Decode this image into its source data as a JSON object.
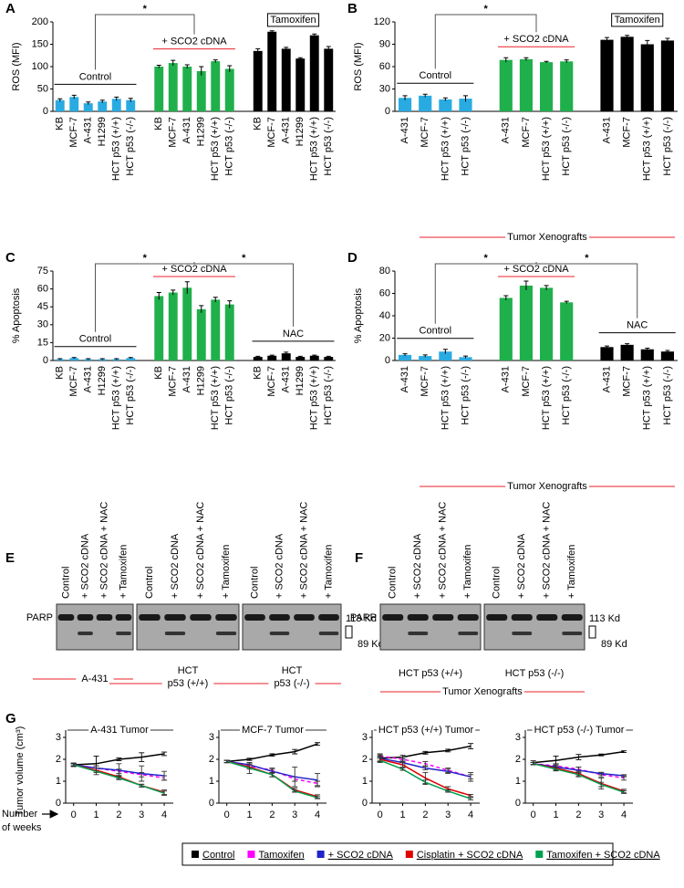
{
  "chart_data": [
    {
      "type": "bar",
      "label": "A",
      "ylabel": "ROS (MFI)",
      "ylim": [
        0,
        200
      ],
      "yticks": [
        0,
        50,
        100,
        150,
        200
      ],
      "groups": [
        {
          "name": "Control",
          "color": "#29abe2",
          "label_color": "#000000",
          "categories": [
            "KB",
            "MCF-7",
            "A-431",
            "H1299",
            "HCT p53 (+/+)",
            "HCT p53 (-/-)"
          ],
          "values": [
            25,
            32,
            18,
            22,
            28,
            25
          ],
          "errors": [
            3,
            4,
            3,
            3,
            4,
            4
          ]
        },
        {
          "name": "+ SCO2 cDNA",
          "color": "#1fb04b",
          "label_color": "#e8202a",
          "categories": [
            "KB",
            "MCF-7",
            "A-431",
            "H1299",
            "HCT p53 (+/+)",
            "HCT p53 (-/-)"
          ],
          "values": [
            100,
            108,
            100,
            90,
            112,
            95
          ],
          "errors": [
            3,
            6,
            4,
            10,
            3,
            7
          ]
        },
        {
          "name": "Tamoxifen",
          "color": "#000000",
          "label_color": "#000000",
          "boxed": true,
          "categories": [
            "KB",
            "MCF-7",
            "A-431",
            "H1299",
            "HCT p53 (+/+)",
            "HCT p53 (-/-)"
          ],
          "values": [
            135,
            178,
            140,
            118,
            170,
            140
          ],
          "errors": [
            5,
            2,
            3,
            2,
            3,
            5
          ]
        }
      ],
      "brackets": [
        {
          "groups": [
            0,
            1
          ],
          "text": "*",
          "color": "#e8202a"
        }
      ]
    },
    {
      "type": "bar",
      "label": "B",
      "ylabel": "ROS (MFI)",
      "ylim": [
        0,
        120
      ],
      "yticks": [
        0,
        30,
        60,
        90,
        120
      ],
      "groups": [
        {
          "name": "Control",
          "color": "#29abe2",
          "label_color": "#000000",
          "categories": [
            "A-431",
            "MCF-7",
            "HCT p53 (+/+)",
            "HCT p53 (-/-)"
          ],
          "values": [
            18,
            21,
            16,
            17
          ],
          "errors": [
            3,
            2,
            2,
            4
          ]
        },
        {
          "name": "+ SCO2 cDNA",
          "color": "#1fb04b",
          "label_color": "#e8202a",
          "categories": [
            "A-431",
            "MCF-7",
            "HCT p53 (+/+)",
            "HCT p53 (-/-)"
          ],
          "values": [
            69,
            70,
            66,
            67
          ],
          "errors": [
            3,
            2,
            1,
            2
          ]
        },
        {
          "name": "Tamoxifen",
          "color": "#000000",
          "label_color": "#000000",
          "boxed": true,
          "categories": [
            "A-431",
            "MCF-7",
            "HCT p53 (+/+)",
            "HCT p53 (-/-)"
          ],
          "values": [
            96,
            100,
            90,
            95
          ],
          "errors": [
            3,
            2,
            5,
            3
          ]
        }
      ],
      "brackets": [
        {
          "groups": [
            0,
            1
          ],
          "text": "*",
          "color": "#e8202a"
        }
      ],
      "note": "Tumor Xenografts",
      "note_color": "#e8202a"
    },
    {
      "type": "bar",
      "label": "C",
      "ylabel": "% Apoptosis",
      "ylim": [
        0,
        75
      ],
      "yticks": [
        0,
        15,
        30,
        45,
        60,
        75
      ],
      "groups": [
        {
          "name": "Control",
          "color": "#29abe2",
          "label_color": "#000000",
          "categories": [
            "KB",
            "MCF-7",
            "A-431",
            "H1299",
            "HCT p53 (+/+)",
            "HCT p53 (-/-)"
          ],
          "values": [
            1,
            2,
            1,
            1,
            1,
            2
          ],
          "errors": [
            0.5,
            0.5,
            0.5,
            0.5,
            0.5,
            0.5
          ]
        },
        {
          "name": "+ SCO2 cDNA",
          "color": "#1fb04b",
          "label_color": "#e8202a",
          "categories": [
            "KB",
            "MCF-7",
            "A-431",
            "H1299",
            "HCT p53 (+/+)",
            "HCT p53 (-/-)"
          ],
          "values": [
            54,
            57,
            61,
            43,
            51,
            47
          ],
          "errors": [
            3,
            2,
            5,
            3,
            2,
            3
          ]
        },
        {
          "name": "NAC",
          "color": "#000000",
          "label_color": "#000000",
          "categories": [
            "KB",
            "MCF-7",
            "A-431",
            "H1299",
            "HCT p53 (+/+)",
            "HCT p53 (-/-)"
          ],
          "values": [
            3,
            4,
            6,
            3,
            4,
            3
          ],
          "errors": [
            0.5,
            0.5,
            1,
            0.5,
            0.5,
            0.5
          ]
        }
      ],
      "brackets": [
        {
          "groups": [
            0,
            1
          ],
          "text": "*",
          "color": "#e8202a"
        },
        {
          "groups": [
            1,
            2
          ],
          "text": "*",
          "color": "#000000"
        }
      ]
    },
    {
      "type": "bar",
      "label": "D",
      "ylabel": "% Apoptosis",
      "ylim": [
        0,
        80
      ],
      "yticks": [
        0,
        20,
        40,
        60,
        80
      ],
      "groups": [
        {
          "name": "Control",
          "color": "#29abe2",
          "label_color": "#000000",
          "categories": [
            "A-431",
            "MCF-7",
            "HCT p53 (+/+)",
            "HCT p53 (-/-)"
          ],
          "values": [
            5,
            4,
            8,
            3
          ],
          "errors": [
            1,
            1,
            2,
            1
          ]
        },
        {
          "name": "+ SCO2 cDNA",
          "color": "#1fb04b",
          "label_color": "#e8202a",
          "categories": [
            "A-431",
            "MCF-7",
            "HCT p53 (+/+)",
            "HCT p53 (-/-)"
          ],
          "values": [
            56,
            67,
            65,
            52
          ],
          "errors": [
            2,
            4,
            2,
            1
          ]
        },
        {
          "name": "NAC",
          "color": "#000000",
          "label_color": "#000000",
          "categories": [
            "A-431",
            "MCF-7",
            "HCT p53 (+/+)",
            "HCT p53 (-/-)"
          ],
          "values": [
            12,
            14,
            10,
            8
          ],
          "errors": [
            1,
            1,
            1,
            1
          ]
        }
      ],
      "brackets": [
        {
          "groups": [
            0,
            1
          ],
          "text": "*",
          "color": "#e8202a"
        },
        {
          "groups": [
            1,
            2
          ],
          "text": "*",
          "color": "#000000"
        }
      ],
      "note": "Tumor Xenografts",
      "note_color": "#e8202a"
    },
    {
      "type": "line",
      "label": "G",
      "ylabel": "Tumor volume (cm³)",
      "xlabel": [
        "Number",
        "of weeks"
      ],
      "x": [
        0,
        1,
        2,
        3,
        4
      ],
      "xlim": [
        -0.35,
        4.4
      ],
      "xticks": [
        0,
        1,
        2,
        3,
        4
      ],
      "ylim": [
        0,
        3
      ],
      "yticks": [
        0,
        1,
        2,
        3
      ],
      "legend": [
        {
          "name": "Control",
          "color": "#000000"
        },
        {
          "name": "Tamoxifen",
          "color": "#ff00ff",
          "dashed": true
        },
        {
          "name": "+ SCO2 cDNA",
          "color": "#2222cc"
        },
        {
          "name": "Cisplatin + SCO2 cDNA",
          "color": "#e00000"
        },
        {
          "name": "Tamoxifen + SCO2 cDNA",
          "color": "#00a050"
        }
      ],
      "panels": [
        {
          "title": "A-431 Tumor",
          "series": [
            {
              "values": [
                1.75,
                1.8,
                2.0,
                2.1,
                2.25
              ],
              "errors": [
                0.08,
                0.35,
                0.06,
                0.2,
                0.08
              ]
            },
            {
              "values": [
                1.75,
                1.6,
                1.45,
                1.3,
                1.15
              ],
              "errors": [
                0.05,
                0.1,
                0.1,
                0.1,
                0.1
              ]
            },
            {
              "values": [
                1.75,
                1.6,
                1.5,
                1.35,
                1.25
              ],
              "errors": [
                0.05,
                0.1,
                0.3,
                0.35,
                0.2
              ]
            },
            {
              "values": [
                1.75,
                1.5,
                1.2,
                0.8,
                0.5
              ],
              "errors": [
                0.05,
                0.1,
                0.08,
                0.06,
                0.1
              ]
            },
            {
              "values": [
                1.75,
                1.45,
                1.15,
                0.8,
                0.45
              ],
              "errors": [
                0.05,
                0.15,
                0.08,
                0.06,
                0.1
              ]
            }
          ]
        },
        {
          "title": "MCF-7 Tumor",
          "series": [
            {
              "values": [
                1.9,
                2.0,
                2.2,
                2.35,
                2.7
              ],
              "errors": [
                0.06,
                0.05,
                0.05,
                0.1,
                0.06
              ]
            },
            {
              "values": [
                1.9,
                1.7,
                1.5,
                1.1,
                0.9
              ],
              "errors": [
                0.05,
                0.1,
                0.1,
                0.1,
                0.1
              ]
            },
            {
              "values": [
                1.9,
                1.75,
                1.45,
                1.2,
                1.05
              ],
              "errors": [
                0.05,
                0.1,
                0.1,
                0.45,
                0.3
              ]
            },
            {
              "values": [
                1.9,
                1.65,
                1.3,
                0.6,
                0.3
              ],
              "errors": [
                0.05,
                0.1,
                0.1,
                0.08,
                0.08
              ]
            },
            {
              "values": [
                1.9,
                1.6,
                1.3,
                0.55,
                0.25
              ],
              "errors": [
                0.05,
                0.25,
                0.1,
                0.05,
                0.05
              ]
            }
          ]
        },
        {
          "title": "HCT p53 (+/+) Tumor",
          "series": [
            {
              "values": [
                2.05,
                2.1,
                2.3,
                2.4,
                2.6
              ],
              "errors": [
                0.15,
                0.08,
                0.06,
                0.06,
                0.12
              ]
            },
            {
              "values": [
                2.15,
                2.0,
                1.8,
                1.5,
                1.2
              ],
              "errors": [
                0.1,
                0.1,
                0.1,
                0.1,
                0.1
              ]
            },
            {
              "values": [
                2.05,
                1.85,
                1.6,
                1.45,
                1.2
              ],
              "errors": [
                0.1,
                0.1,
                0.08,
                0.1,
                0.2
              ]
            },
            {
              "values": [
                2.0,
                1.75,
                1.15,
                0.65,
                0.35
              ],
              "errors": [
                0.1,
                0.1,
                0.25,
                0.1,
                0.05
              ]
            },
            {
              "values": [
                1.95,
                1.55,
                0.95,
                0.55,
                0.2
              ],
              "errors": [
                0.1,
                0.05,
                0.1,
                0.05,
                0.05
              ]
            }
          ]
        },
        {
          "title": "HCT p53 (-/-) Tumor",
          "series": [
            {
              "values": [
                1.85,
                1.95,
                2.1,
                2.2,
                2.35
              ],
              "errors": [
                0.08,
                0.2,
                0.12,
                0.04,
                0.04
              ]
            },
            {
              "values": [
                1.8,
                1.7,
                1.55,
                1.3,
                1.15
              ],
              "errors": [
                0.05,
                0.1,
                0.1,
                0.1,
                0.1
              ]
            },
            {
              "values": [
                1.8,
                1.65,
                1.5,
                1.35,
                1.25
              ],
              "errors": [
                0.05,
                0.1,
                0.15,
                0.06,
                0.05
              ]
            },
            {
              "values": [
                1.8,
                1.6,
                1.35,
                0.9,
                0.55
              ],
              "errors": [
                0.05,
                0.1,
                0.1,
                0.25,
                0.08
              ]
            },
            {
              "values": [
                1.8,
                1.55,
                1.3,
                0.85,
                0.5
              ],
              "errors": [
                0.05,
                0.08,
                0.1,
                0.1,
                0.06
              ]
            }
          ]
        }
      ]
    }
  ],
  "blots": [
    {
      "label": "E",
      "protein": "PARP",
      "markers": [
        "113 Kd",
        "89 Kd"
      ],
      "panels": [
        {
          "lanes": [
            "Control",
            "+ SCO2 cDNA",
            "+ SCO2 cDNA + NAC",
            "+ Tamoxifen"
          ],
          "name": [
            "A-431"
          ]
        },
        {
          "lanes": [
            "Control",
            "+ SCO2 cDNA",
            "+ SCO2 cDNA + NAC",
            "+ Tamoxifen"
          ],
          "name": [
            "HCT",
            "p53 (+/+)"
          ]
        },
        {
          "lanes": [
            "Control",
            "+ SCO2 cDNA",
            "+ SCO2 cDNA + NAC",
            "+ Tamoxifen"
          ],
          "name": [
            "HCT",
            "p53 (-/-)"
          ]
        }
      ]
    },
    {
      "label": "F",
      "protein": "PARP",
      "markers": [
        "113 Kd",
        "89 Kd"
      ],
      "panels": [
        {
          "lanes": [
            "Control",
            "+ SCO2 cDNA",
            "+ SCO2 cDNA + NAC",
            "+ Tamoxifen"
          ],
          "name": [
            "HCT p53 (+/+)"
          ]
        },
        {
          "lanes": [
            "Control",
            "+ SCO2 cDNA",
            "+ SCO2 cDNA + NAC",
            "+ Tamoxifen"
          ],
          "name": [
            "HCT p53 (-/-)"
          ]
        }
      ],
      "note": "Tumor Xenografts",
      "note_color": "#e8202a"
    }
  ]
}
